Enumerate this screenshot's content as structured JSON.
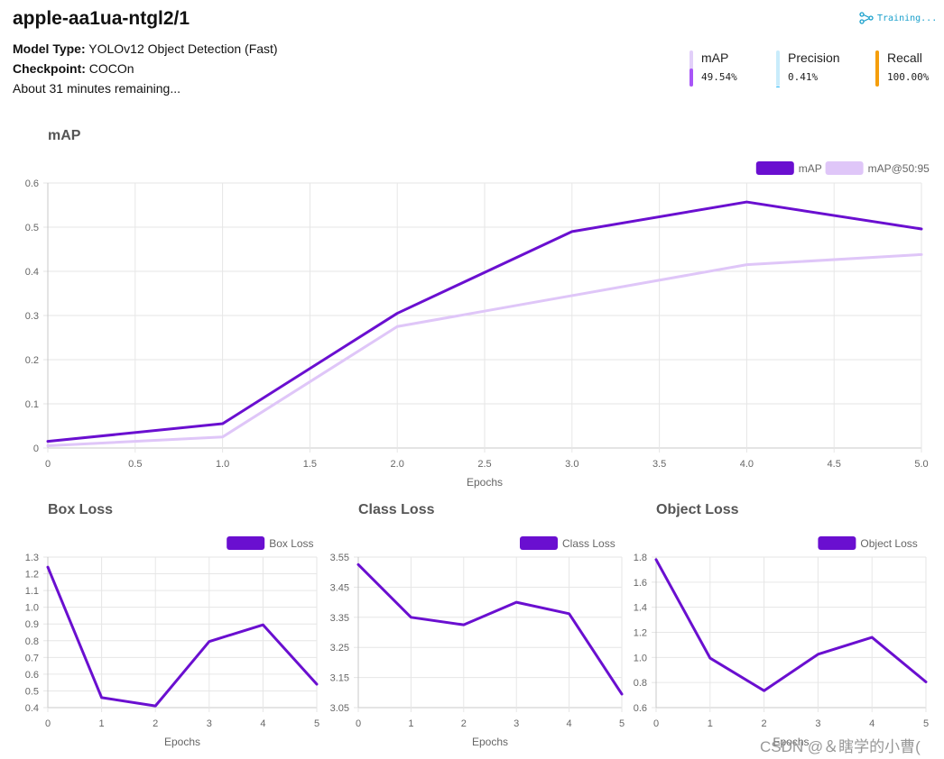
{
  "header": {
    "title": "apple-aa1ua-ntgl2/1",
    "model_type_label": "Model Type:",
    "model_type_value": "YOLOv12 Object Detection (Fast)",
    "checkpoint_label": "Checkpoint:",
    "checkpoint_value": "COCOn",
    "remaining": "About 31 minutes remaining...",
    "status": "Training..."
  },
  "metrics": [
    {
      "label": "mAP",
      "value": "49.54%",
      "fraction": 0.4954,
      "color": "#a855f7",
      "track": "#e2cff9"
    },
    {
      "label": "Precision",
      "value": "0.41%",
      "fraction": 0.0041,
      "color": "#38bdf8",
      "track": "#c9ecfb"
    },
    {
      "label": "Recall",
      "value": "100.00%",
      "fraction": 1.0,
      "color": "#f59e0b",
      "track": "#fde5b5"
    }
  ],
  "colors": {
    "primary": "#6a0fd0",
    "secondary": "#dfc6f8",
    "grid": "#e6e6e6",
    "axis": "#c8c8c8"
  },
  "watermark": "CSDN @＆瞎学的小曹(",
  "chart_data": [
    {
      "id": "map",
      "type": "line",
      "title": "mAP",
      "xlabel": "Epochs",
      "ylabel": "",
      "xlim": [
        0,
        5
      ],
      "ylim": [
        0,
        0.6
      ],
      "xticks": [
        "0",
        "0.5",
        "1.0",
        "1.5",
        "2.0",
        "2.5",
        "3.0",
        "3.5",
        "4.0",
        "4.5",
        "5.0"
      ],
      "yticks": [
        "0",
        "0.1",
        "0.2",
        "0.3",
        "0.4",
        "0.5",
        "0.6"
      ],
      "x": [
        0,
        1,
        2,
        3,
        4,
        5
      ],
      "series": [
        {
          "name": "mAP",
          "values": [
            0.015,
            0.055,
            0.305,
            0.49,
            0.557,
            0.496
          ],
          "color": "#6a0fd0"
        },
        {
          "name": "mAP@50:95",
          "values": [
            0.005,
            0.025,
            0.275,
            0.345,
            0.415,
            0.438
          ],
          "color": "#dfc6f8"
        }
      ],
      "legend": "top-right"
    },
    {
      "id": "box",
      "type": "line",
      "title": "Box Loss",
      "xlabel": "Epochs",
      "ylabel": "",
      "xlim": [
        0,
        5
      ],
      "ylim": [
        0.4,
        1.3
      ],
      "xticks": [
        "0",
        "1",
        "2",
        "3",
        "4",
        "5"
      ],
      "yticks": [
        "0.4",
        "0.5",
        "0.6",
        "0.7",
        "0.8",
        "0.9",
        "1.0",
        "1.1",
        "1.2",
        "1.3"
      ],
      "x": [
        0,
        1,
        2,
        3,
        4,
        5
      ],
      "series": [
        {
          "name": "Box Loss",
          "values": [
            1.24,
            0.46,
            0.41,
            0.795,
            0.895,
            0.54
          ],
          "color": "#6a0fd0"
        }
      ],
      "legend": "top-right"
    },
    {
      "id": "class",
      "type": "line",
      "title": "Class Loss",
      "xlabel": "Epochs",
      "ylabel": "",
      "xlim": [
        0,
        5
      ],
      "ylim": [
        3.05,
        3.55
      ],
      "xticks": [
        "0",
        "1",
        "2",
        "3",
        "4",
        "5"
      ],
      "yticks": [
        "3.05",
        "3.15",
        "3.25",
        "3.35",
        "3.45",
        "3.55"
      ],
      "x": [
        0,
        1,
        2,
        3,
        4,
        5
      ],
      "series": [
        {
          "name": "Class Loss",
          "values": [
            3.525,
            3.35,
            3.325,
            3.4,
            3.362,
            3.095
          ],
          "color": "#6a0fd0"
        }
      ],
      "legend": "top-right"
    },
    {
      "id": "obj",
      "type": "line",
      "title": "Object Loss",
      "xlabel": "Epochs",
      "ylabel": "",
      "xlim": [
        0,
        5
      ],
      "ylim": [
        0.6,
        1.8
      ],
      "xticks": [
        "0",
        "1",
        "2",
        "3",
        "4",
        "5"
      ],
      "yticks": [
        "0.6",
        "0.8",
        "1.0",
        "1.2",
        "1.4",
        "1.6",
        "1.8"
      ],
      "x": [
        0,
        1,
        2,
        3,
        4,
        5
      ],
      "series": [
        {
          "name": "Object Loss",
          "values": [
            1.78,
            0.995,
            0.735,
            1.025,
            1.16,
            0.805
          ],
          "color": "#6a0fd0"
        }
      ],
      "legend": "top-right"
    }
  ]
}
